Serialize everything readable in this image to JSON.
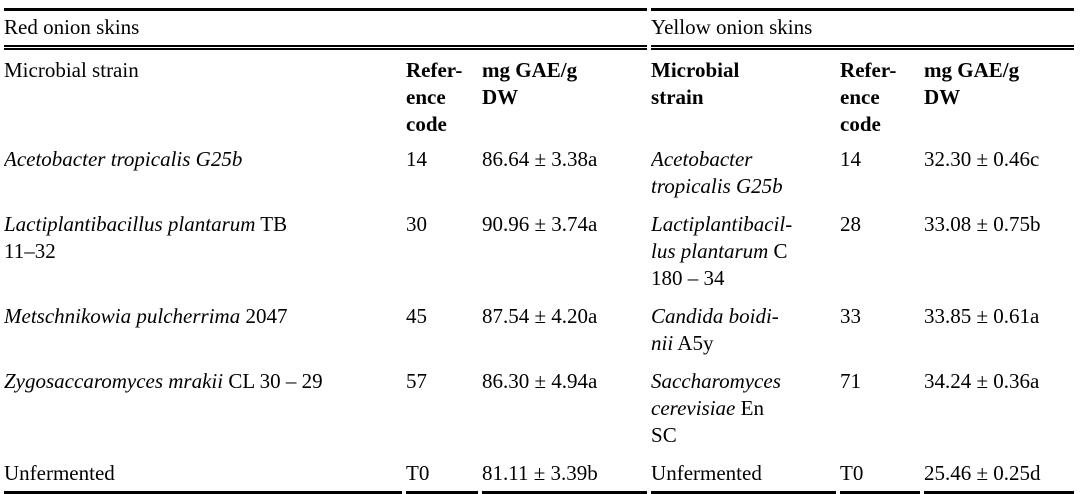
{
  "page": {
    "background_color": "#ffffff",
    "text_color": "#000000",
    "rule_color": "#000000"
  },
  "group_headers": {
    "left": "Red onion skins",
    "right": "Yellow onion skins"
  },
  "column_headers": [
    {
      "lines": [
        "Microbial strain"
      ],
      "bold": false
    },
    {
      "lines": [
        "Refer-",
        "ence",
        "code"
      ],
      "bold": true
    },
    {
      "lines": [
        "mg GAE/g",
        "DW"
      ],
      "bold": true
    },
    {
      "lines": [
        "Microbial",
        "strain"
      ],
      "bold": true
    },
    {
      "lines": [
        "Refer-",
        "ence",
        "code"
      ],
      "bold": true
    },
    {
      "lines": [
        "mg GAE/g",
        "DW"
      ],
      "bold": true
    }
  ],
  "rows": [
    [
      [
        [
          {
            "t": "Acetobacter tropicalis G25b",
            "i": true
          }
        ]
      ],
      [
        [
          {
            "t": "14",
            "i": false
          }
        ]
      ],
      [
        [
          {
            "t": "86.64 ± 3.38a",
            "i": false
          }
        ]
      ],
      [
        [
          {
            "t": "Acetobacter",
            "i": true
          }
        ],
        [
          {
            "t": "tropicalis G25b",
            "i": true
          }
        ]
      ],
      [
        [
          {
            "t": "14",
            "i": false
          }
        ]
      ],
      [
        [
          {
            "t": "32.30 ± 0.46c",
            "i": false
          }
        ]
      ]
    ],
    [
      [
        [
          {
            "t": "Lactiplantibacillus plantarum",
            "i": true
          },
          {
            "t": " TB",
            "i": false
          }
        ],
        [
          {
            "t": "11–32",
            "i": false
          }
        ]
      ],
      [
        [
          {
            "t": "30",
            "i": false
          }
        ]
      ],
      [
        [
          {
            "t": "90.96 ± 3.74a",
            "i": false
          }
        ]
      ],
      [
        [
          {
            "t": "Lactiplantibacil-",
            "i": true
          }
        ],
        [
          {
            "t": "lus plantarum",
            "i": true
          },
          {
            "t": " C",
            "i": false
          }
        ],
        [
          {
            "t": "180 – 34",
            "i": false
          }
        ]
      ],
      [
        [
          {
            "t": "28",
            "i": false
          }
        ]
      ],
      [
        [
          {
            "t": "33.08 ± 0.75b",
            "i": false
          }
        ]
      ]
    ],
    [
      [
        [
          {
            "t": "Metschnikowia pulcherrima",
            "i": true
          },
          {
            "t": " 2047",
            "i": false
          }
        ]
      ],
      [
        [
          {
            "t": "45",
            "i": false
          }
        ]
      ],
      [
        [
          {
            "t": "87.54 ± 4.20a",
            "i": false
          }
        ]
      ],
      [
        [
          {
            "t": "Candida boidi-",
            "i": true
          }
        ],
        [
          {
            "t": "nii",
            "i": true
          },
          {
            "t": " A5y",
            "i": false
          }
        ]
      ],
      [
        [
          {
            "t": "33",
            "i": false
          }
        ]
      ],
      [
        [
          {
            "t": "33.85 ± 0.61a",
            "i": false
          }
        ]
      ]
    ],
    [
      [
        [
          {
            "t": "Zygosaccaromyces mrakii",
            "i": true
          },
          {
            "t": " CL 30 – 29",
            "i": false
          }
        ]
      ],
      [
        [
          {
            "t": "57",
            "i": false
          }
        ]
      ],
      [
        [
          {
            "t": "86.30 ± 4.94a",
            "i": false
          }
        ]
      ],
      [
        [
          {
            "t": "Saccharomyces",
            "i": true
          }
        ],
        [
          {
            "t": "cerevisiae",
            "i": true
          },
          {
            "t": " En",
            "i": false
          }
        ],
        [
          {
            "t": "SC",
            "i": false
          }
        ]
      ],
      [
        [
          {
            "t": "71",
            "i": false
          }
        ]
      ],
      [
        [
          {
            "t": "34.24 ± 0.36a",
            "i": false
          }
        ]
      ]
    ],
    [
      [
        [
          {
            "t": "Unfermented",
            "i": false
          }
        ]
      ],
      [
        [
          {
            "t": "T0",
            "i": false
          }
        ]
      ],
      [
        [
          {
            "t": "81.11 ± 3.39b",
            "i": false
          }
        ]
      ],
      [
        [
          {
            "t": "Unfermented",
            "i": false
          }
        ]
      ],
      [
        [
          {
            "t": "T0",
            "i": false
          }
        ]
      ],
      [
        [
          {
            "t": "25.46 ± 0.25d",
            "i": false
          }
        ]
      ]
    ]
  ]
}
